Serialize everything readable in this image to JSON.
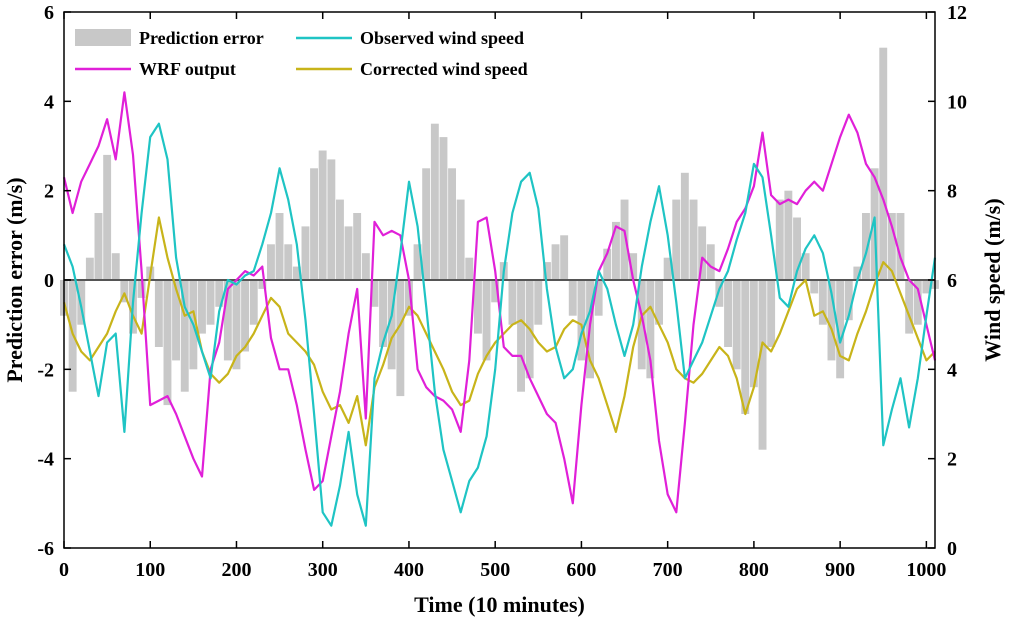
{
  "chart_data": {
    "type": "line",
    "title": "",
    "xlabel": "Time (10 minutes)",
    "ylabel_left": "Prediction error (m/s)",
    "ylabel_right": "Wind speed (m/s)",
    "xlim": [
      0,
      1010
    ],
    "ylim_left": [
      -6,
      6
    ],
    "ylim_right": [
      0,
      12
    ],
    "xticks": [
      "0",
      "100",
      "200",
      "300",
      "400",
      "500",
      "600",
      "700",
      "800",
      "900",
      "1000"
    ],
    "yticks_left": [
      "-6",
      "-4",
      "-2",
      "0",
      "2",
      "4",
      "6"
    ],
    "yticks_right": [
      "0",
      "2",
      "4",
      "6",
      "8",
      "10",
      "12"
    ],
    "grid": false,
    "legend_position": "top",
    "colors": {
      "prediction_error": "#c8c8c8",
      "observed": "#1fc4c4",
      "wrf": "#e020d8",
      "corrected": "#c8b41a",
      "zero_line": "#555555"
    },
    "series": [
      {
        "name": "Prediction error",
        "axis": "left",
        "style": "bar",
        "x": [
          0,
          10,
          20,
          30,
          40,
          50,
          60,
          70,
          80,
          90,
          100,
          110,
          120,
          130,
          140,
          150,
          160,
          170,
          180,
          190,
          200,
          210,
          220,
          230,
          240,
          250,
          260,
          270,
          280,
          290,
          300,
          310,
          320,
          330,
          340,
          350,
          360,
          370,
          380,
          390,
          400,
          410,
          420,
          430,
          440,
          450,
          460,
          470,
          480,
          490,
          500,
          510,
          520,
          530,
          540,
          550,
          560,
          570,
          580,
          590,
          600,
          610,
          620,
          630,
          640,
          650,
          660,
          670,
          680,
          690,
          700,
          710,
          720,
          730,
          740,
          750,
          760,
          770,
          780,
          790,
          800,
          810,
          820,
          830,
          840,
          850,
          860,
          870,
          880,
          890,
          900,
          910,
          920,
          930,
          940,
          950,
          960,
          970,
          980,
          990,
          1000,
          1010
        ],
        "values": [
          -0.8,
          -2.5,
          -1.0,
          0.5,
          1.5,
          2.8,
          0.6,
          -0.5,
          -1.2,
          -0.4,
          0.3,
          -1.5,
          -2.8,
          -1.8,
          -2.5,
          -2.0,
          -1.2,
          -1.0,
          -0.6,
          -1.8,
          -2.0,
          -1.6,
          -1.0,
          -0.2,
          0.8,
          1.5,
          0.8,
          0.3,
          1.2,
          2.5,
          2.9,
          2.7,
          1.8,
          1.2,
          1.5,
          0.6,
          -0.6,
          -1.5,
          -2.0,
          -2.6,
          -0.8,
          0.8,
          2.5,
          3.5,
          3.2,
          2.5,
          1.8,
          0.5,
          -1.2,
          -1.8,
          -0.5,
          0.4,
          -1.0,
          -2.5,
          -2.2,
          -1.0,
          0.4,
          0.8,
          1.0,
          -0.8,
          -1.8,
          -2.2,
          -0.8,
          0.7,
          1.3,
          1.8,
          0.6,
          -2.0,
          -2.2,
          -1.0,
          0.5,
          1.8,
          2.4,
          1.8,
          1.2,
          0.8,
          -0.6,
          -1.5,
          -2.0,
          -3.0,
          -2.4,
          -3.8,
          -1.5,
          1.8,
          2.0,
          1.4,
          0.6,
          -0.3,
          -1.0,
          -1.8,
          -2.2,
          -0.9,
          0.3,
          1.5,
          2.5,
          5.2,
          1.5,
          1.5,
          -1.2,
          -1.0,
          -0.3,
          -0.2
        ]
      },
      {
        "name": "Observed wind speed",
        "axis": "right",
        "style": "line",
        "x": [
          0,
          10,
          20,
          30,
          40,
          50,
          60,
          70,
          80,
          90,
          100,
          110,
          120,
          130,
          140,
          150,
          160,
          170,
          180,
          190,
          200,
          210,
          220,
          230,
          240,
          250,
          260,
          270,
          280,
          290,
          300,
          310,
          320,
          330,
          340,
          350,
          360,
          370,
          380,
          390,
          400,
          410,
          420,
          430,
          440,
          450,
          460,
          470,
          480,
          490,
          500,
          510,
          520,
          530,
          540,
          550,
          560,
          570,
          580,
          590,
          600,
          610,
          620,
          630,
          640,
          650,
          660,
          670,
          680,
          690,
          700,
          710,
          720,
          730,
          740,
          750,
          760,
          770,
          780,
          790,
          800,
          810,
          820,
          830,
          840,
          850,
          860,
          870,
          880,
          890,
          900,
          910,
          920,
          930,
          940,
          950,
          960,
          970,
          980,
          990,
          1000,
          1010
        ],
        "values": [
          6.8,
          6.3,
          5.4,
          4.4,
          3.4,
          4.6,
          4.8,
          2.6,
          5.5,
          7.5,
          9.2,
          9.5,
          8.7,
          6.5,
          5.4,
          5.0,
          4.4,
          3.8,
          5.3,
          6.0,
          5.9,
          6.1,
          6.2,
          6.8,
          7.5,
          8.5,
          7.8,
          6.8,
          5.1,
          3.0,
          0.8,
          0.5,
          1.4,
          2.6,
          1.2,
          0.5,
          3.8,
          4.6,
          5.2,
          6.6,
          8.2,
          7.2,
          5.4,
          3.5,
          2.2,
          1.5,
          0.8,
          1.5,
          1.8,
          2.5,
          4.0,
          6.2,
          7.5,
          8.2,
          8.4,
          7.6,
          5.8,
          4.5,
          3.8,
          4.0,
          4.8,
          5.3,
          6.2,
          5.8,
          5.0,
          4.3,
          5.0,
          6.3,
          7.3,
          8.1,
          7.0,
          5.5,
          3.8,
          4.2,
          4.6,
          5.2,
          5.8,
          6.2,
          6.9,
          7.5,
          8.6,
          8.3,
          7.0,
          5.6,
          5.4,
          6.2,
          6.7,
          7.0,
          6.6,
          5.7,
          4.6,
          5.2,
          6.0,
          6.6,
          7.4,
          2.3,
          3.1,
          3.8,
          2.7,
          3.8,
          5.2,
          6.5
        ]
      },
      {
        "name": "WRF output",
        "axis": "right",
        "style": "line",
        "x": [
          0,
          10,
          20,
          30,
          40,
          50,
          60,
          70,
          80,
          90,
          100,
          110,
          120,
          130,
          140,
          150,
          160,
          170,
          180,
          190,
          200,
          210,
          220,
          230,
          240,
          250,
          260,
          270,
          280,
          290,
          300,
          310,
          320,
          330,
          340,
          350,
          360,
          370,
          380,
          390,
          400,
          410,
          420,
          430,
          440,
          450,
          460,
          470,
          480,
          490,
          500,
          510,
          520,
          530,
          540,
          550,
          560,
          570,
          580,
          590,
          600,
          610,
          620,
          630,
          640,
          650,
          660,
          670,
          680,
          690,
          700,
          710,
          720,
          730,
          740,
          750,
          760,
          770,
          780,
          790,
          800,
          810,
          820,
          830,
          840,
          850,
          860,
          870,
          880,
          890,
          900,
          910,
          920,
          930,
          940,
          950,
          960,
          970,
          980,
          990,
          1000,
          1010
        ],
        "values": [
          8.3,
          7.5,
          8.2,
          8.6,
          9.0,
          9.6,
          8.7,
          10.2,
          8.8,
          6.2,
          3.2,
          3.3,
          3.4,
          3.0,
          2.5,
          2.0,
          1.6,
          4.0,
          4.6,
          5.8,
          6.0,
          6.2,
          6.1,
          6.3,
          4.7,
          4.0,
          4.0,
          3.2,
          2.2,
          1.3,
          1.5,
          2.5,
          3.5,
          4.8,
          5.8,
          2.9,
          7.3,
          7.0,
          7.1,
          7.0,
          6.0,
          4.0,
          3.6,
          3.4,
          3.3,
          3.1,
          2.6,
          4.2,
          7.3,
          7.4,
          6.2,
          4.5,
          4.3,
          4.3,
          3.8,
          3.4,
          3.0,
          2.8,
          2.0,
          1.0,
          3.2,
          5.0,
          6.2,
          6.6,
          7.2,
          7.1,
          6.0,
          5.2,
          4.2,
          2.4,
          1.2,
          0.8,
          2.8,
          5.0,
          6.5,
          6.3,
          6.2,
          6.7,
          7.3,
          7.6,
          8.1,
          9.3,
          7.9,
          7.7,
          7.8,
          7.7,
          8.0,
          8.2,
          8.0,
          8.6,
          9.2,
          9.7,
          9.3,
          8.6,
          8.3,
          7.8,
          7.2,
          6.5,
          6.0,
          5.8,
          5.0,
          4.2
        ]
      },
      {
        "name": "Corrected wind speed",
        "axis": "right",
        "style": "line",
        "x": [
          0,
          10,
          20,
          30,
          40,
          50,
          60,
          70,
          80,
          90,
          100,
          110,
          120,
          130,
          140,
          150,
          160,
          170,
          180,
          190,
          200,
          210,
          220,
          230,
          240,
          250,
          260,
          270,
          280,
          290,
          300,
          310,
          320,
          330,
          340,
          350,
          360,
          370,
          380,
          390,
          400,
          410,
          420,
          430,
          440,
          450,
          460,
          470,
          480,
          490,
          500,
          510,
          520,
          530,
          540,
          550,
          560,
          570,
          580,
          590,
          600,
          610,
          620,
          630,
          640,
          650,
          660,
          670,
          680,
          690,
          700,
          710,
          720,
          730,
          740,
          750,
          760,
          770,
          780,
          790,
          800,
          810,
          820,
          830,
          840,
          850,
          860,
          870,
          880,
          890,
          900,
          910,
          920,
          930,
          940,
          950,
          960,
          970,
          980,
          990,
          1000,
          1010
        ],
        "values": [
          5.5,
          4.8,
          4.4,
          4.2,
          4.5,
          4.8,
          5.3,
          5.7,
          5.2,
          4.8,
          6.1,
          7.4,
          6.5,
          5.8,
          5.2,
          5.3,
          4.4,
          3.9,
          3.7,
          3.9,
          4.3,
          4.5,
          4.8,
          5.2,
          5.6,
          5.4,
          4.8,
          4.6,
          4.4,
          4.1,
          3.5,
          3.1,
          3.2,
          2.8,
          3.4,
          2.3,
          3.6,
          4.1,
          4.7,
          5.0,
          5.4,
          5.2,
          4.8,
          4.4,
          4.0,
          3.5,
          3.2,
          3.3,
          3.9,
          4.3,
          4.6,
          4.8,
          5.0,
          5.1,
          4.9,
          4.6,
          4.4,
          4.5,
          4.9,
          5.1,
          5.0,
          4.2,
          3.8,
          3.2,
          2.6,
          3.4,
          4.5,
          5.2,
          5.4,
          5.0,
          4.6,
          4.0,
          3.8,
          3.7,
          3.9,
          4.2,
          4.5,
          4.3,
          3.8,
          3.0,
          3.6,
          4.6,
          4.4,
          4.8,
          5.3,
          5.8,
          6.0,
          5.2,
          5.3,
          4.9,
          4.3,
          4.2,
          4.8,
          5.3,
          5.9,
          6.4,
          6.2,
          5.7,
          5.2,
          4.7,
          4.2,
          4.4
        ]
      }
    ]
  }
}
